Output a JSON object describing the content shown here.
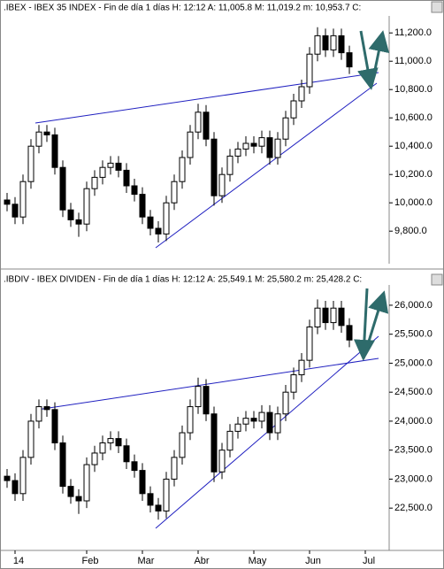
{
  "chart_data": [
    {
      "type": "candlestick",
      "title": ".IBEX - IBEX 35 INDEX - Fin de día 1 días  H: 12:12  A: 11,005.8  M: 11,019.2  m: 10,953.7  C:",
      "open": [
        10020,
        9990,
        9900,
        10150,
        10400,
        10500,
        10480,
        10250,
        9950,
        9880,
        9850,
        10100,
        10180,
        10250,
        10280,
        10230,
        10120,
        10060,
        9900,
        9820,
        9780,
        10000,
        10150,
        10320,
        10500,
        10640,
        10450,
        10050,
        10200,
        10330,
        10380,
        10420,
        10400,
        10460,
        10320,
        10450,
        10600,
        10720,
        10820,
        11050,
        11180,
        11080,
        11180,
        11060,
        null,
        null
      ],
      "high": [
        10070,
        10040,
        10200,
        10450,
        10550,
        10550,
        10530,
        10300,
        10000,
        9930,
        10150,
        10230,
        10300,
        10330,
        10330,
        10280,
        10170,
        10110,
        9950,
        9870,
        10050,
        10200,
        10370,
        10550,
        10700,
        10690,
        10500,
        10250,
        10380,
        10430,
        10470,
        10470,
        10510,
        10510,
        10500,
        10650,
        10770,
        10870,
        11100,
        11240,
        11230,
        11230,
        11230,
        11110,
        null,
        null
      ],
      "low": [
        9940,
        9850,
        9850,
        10100,
        10350,
        10430,
        10200,
        9900,
        9830,
        9760,
        9800,
        10050,
        10130,
        10200,
        10180,
        10070,
        10010,
        9850,
        9770,
        9720,
        9730,
        9950,
        10100,
        10270,
        10450,
        10400,
        9980,
        10000,
        10150,
        10280,
        10330,
        10350,
        10350,
        10270,
        10270,
        10400,
        10550,
        10670,
        10770,
        11000,
        11030,
        11030,
        11010,
        10910,
        null,
        null
      ],
      "close": [
        9990,
        9900,
        10150,
        10400,
        10500,
        10480,
        10250,
        9950,
        9880,
        9850,
        10100,
        10180,
        10250,
        10280,
        10230,
        10120,
        10060,
        9900,
        9820,
        9780,
        10000,
        10150,
        10320,
        10500,
        10640,
        10450,
        10050,
        10200,
        10330,
        10380,
        10420,
        10400,
        10460,
        10320,
        10450,
        10600,
        10720,
        10820,
        11050,
        11180,
        11080,
        11180,
        11060,
        10960,
        null,
        null
      ],
      "up_color": "#ffffff",
      "down_color": "#000000",
      "ylim": [
        9570,
        11320
      ],
      "yticks": [
        {
          "value": 9800,
          "label": "9,800.0"
        },
        {
          "value": 10000,
          "label": "10,000.0"
        },
        {
          "value": 10200,
          "label": "10,200.0"
        },
        {
          "value": 10400,
          "label": "10,400.0"
        },
        {
          "value": 10600,
          "label": "10,600.0"
        },
        {
          "value": 10800,
          "label": "10,800.0"
        },
        {
          "value": 11000,
          "label": "11,000.0"
        },
        {
          "value": 11200,
          "label": "11,200.0"
        }
      ]
    },
    {
      "type": "candlestick",
      "title": ".IBDIV - IBEX DIVIDEN - Fin de día 1 días  H: 12:12  A: 25,549.1  M: 25,580.2  m: 25,428.2  C:",
      "categories": [
        null,
        "14",
        null,
        null,
        null,
        null,
        null,
        null,
        null,
        null,
        "Feb",
        null,
        null,
        null,
        null,
        null,
        null,
        "Mar",
        null,
        null,
        null,
        null,
        null,
        null,
        "Abr",
        null,
        null,
        null,
        null,
        null,
        null,
        "May",
        null,
        null,
        null,
        null,
        null,
        null,
        "Jun",
        null,
        null,
        null,
        null,
        null,
        null,
        "Jul"
      ],
      "open": [
        23050,
        22975,
        22750,
        23375,
        24000,
        24250,
        24200,
        23625,
        22875,
        22700,
        22625,
        23250,
        23450,
        23625,
        23700,
        23575,
        23300,
        23150,
        22750,
        22550,
        22450,
        23000,
        23375,
        23800,
        24250,
        24600,
        24125,
        23125,
        23500,
        23825,
        23950,
        24050,
        24000,
        24150,
        23800,
        24125,
        24500,
        24800,
        25050,
        25625,
        25950,
        25700,
        25950,
        25650,
        null,
        null
      ],
      "high": [
        23175,
        23100,
        23500,
        24125,
        24375,
        24375,
        24325,
        23750,
        23000,
        22825,
        23375,
        23575,
        23750,
        23825,
        23825,
        23700,
        23425,
        23275,
        22875,
        22675,
        23125,
        23500,
        23925,
        24375,
        24750,
        24725,
        24250,
        23625,
        23950,
        24075,
        24175,
        24175,
        24275,
        24275,
        24250,
        24625,
        24925,
        25175,
        25750,
        26100,
        26075,
        26075,
        26075,
        25775,
        null,
        null
      ],
      "low": [
        22850,
        22625,
        22625,
        23250,
        23875,
        24075,
        23500,
        22750,
        22575,
        22400,
        22500,
        23125,
        23325,
        23500,
        23450,
        23175,
        23025,
        22625,
        22425,
        22300,
        22325,
        22875,
        23250,
        23675,
        24125,
        24000,
        22950,
        23000,
        23375,
        23700,
        23825,
        23875,
        23875,
        23675,
        23675,
        24000,
        24375,
        24675,
        24925,
        25500,
        25575,
        25575,
        25525,
        25275,
        null,
        null
      ],
      "close": [
        22975,
        22750,
        23375,
        24000,
        24250,
        24200,
        23625,
        22875,
        22700,
        22625,
        23250,
        23450,
        23625,
        23700,
        23575,
        23300,
        23150,
        22750,
        22550,
        22450,
        23000,
        23375,
        23800,
        24250,
        24600,
        24125,
        23125,
        23500,
        23825,
        23950,
        24050,
        24000,
        24150,
        23800,
        24125,
        24500,
        24800,
        25050,
        25625,
        25950,
        25700,
        25950,
        25650,
        25400,
        null,
        null
      ],
      "up_color": "#ffffff",
      "down_color": "#000000",
      "ylim": [
        21770,
        26350
      ],
      "yticks": [
        {
          "value": 22500,
          "label": "22,500.0"
        },
        {
          "value": 23000,
          "label": "23,000.0"
        },
        {
          "value": 23500,
          "label": "23,500.0"
        },
        {
          "value": 24000,
          "label": "24,000.0"
        },
        {
          "value": 24500,
          "label": "24,500.0"
        },
        {
          "value": 25000,
          "label": "25,000.0"
        },
        {
          "value": 25500,
          "label": "25,500.0"
        },
        {
          "value": 26000,
          "label": "26,000.0"
        }
      ]
    }
  ]
}
